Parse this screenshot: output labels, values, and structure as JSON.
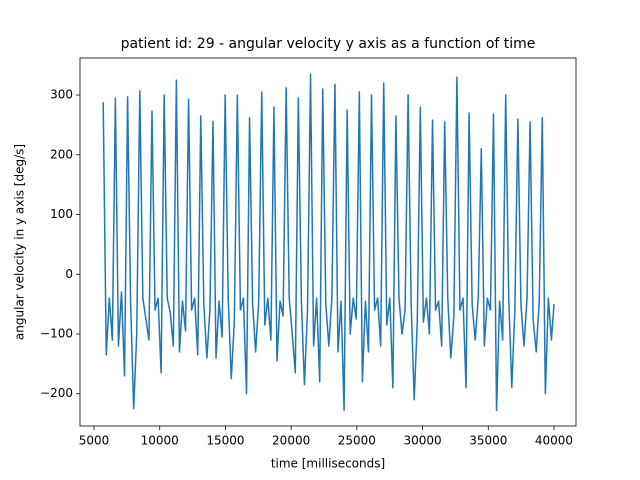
{
  "chart_data": {
    "type": "line",
    "title": "patient id: 29 - angular velocity y axis as a function of time",
    "xlabel": "time [milliseconds]",
    "ylabel": "angular velocity in y axis [deg/s]",
    "color": "#1f77b4",
    "xlim": [
      3935,
      41674
    ],
    "ylim": [
      -254,
      362
    ],
    "xticks": [
      5000,
      10000,
      15000,
      20000,
      25000,
      30000,
      35000,
      40000
    ],
    "yticks": [
      {
        "value": -200,
        "label": "−200"
      },
      {
        "value": -100,
        "label": "−100"
      },
      0,
      100,
      200,
      300
    ],
    "x": [
      5700,
      5932,
      6164,
      6396,
      6628,
      6860,
      7092,
      7324,
      7556,
      7788,
      8020,
      8252,
      8484,
      8716,
      8948,
      9180,
      9412,
      9644,
      9876,
      10108,
      10340,
      10572,
      10804,
      11036,
      11268,
      11500,
      11732,
      11964,
      12196,
      12428,
      12660,
      12892,
      13124,
      13356,
      13588,
      13820,
      14052,
      14284,
      14516,
      14748,
      14980,
      15212,
      15444,
      15676,
      15908,
      16140,
      16372,
      16604,
      16836,
      17068,
      17300,
      17532,
      17764,
      17996,
      18228,
      18460,
      18692,
      18924,
      19156,
      19388,
      19620,
      19852,
      20084,
      20316,
      20548,
      20780,
      21012,
      21244,
      21476,
      21708,
      21940,
      22172,
      22404,
      22636,
      22868,
      23100,
      23332,
      23564,
      23796,
      24028,
      24260,
      24492,
      24724,
      24956,
      25188,
      25420,
      25652,
      25884,
      26116,
      26348,
      26580,
      26812,
      27044,
      27276,
      27508,
      27740,
      27972,
      28204,
      28436,
      28668,
      28900,
      29132,
      29364,
      29596,
      29828,
      30060,
      30292,
      30524,
      30756,
      30988,
      31220,
      31452,
      31684,
      31916,
      32148,
      32380,
      32612,
      32844,
      33076,
      33308,
      33540,
      33772,
      34004,
      34236,
      34468,
      34700,
      34932,
      35164,
      35396,
      35628,
      35860,
      36092,
      36324,
      36556,
      36788,
      37020,
      37252,
      37484,
      37716,
      37948,
      38180,
      38412,
      38644,
      38876,
      39108,
      39340,
      39572,
      39804,
      40000
    ],
    "values": [
      288,
      -135,
      -40,
      -110,
      295,
      -120,
      -30,
      -170,
      297,
      -50,
      -225,
      -100,
      307,
      -40,
      -75,
      -110,
      273,
      -60,
      -40,
      -165,
      300,
      -40,
      -65,
      -120,
      325,
      -130,
      -45,
      -95,
      293,
      -60,
      -40,
      -135,
      265,
      -50,
      -140,
      -60,
      256,
      -140,
      -45,
      -105,
      300,
      -40,
      -175,
      -80,
      300,
      -60,
      -40,
      -200,
      262,
      -50,
      -130,
      -45,
      305,
      -85,
      -40,
      -110,
      280,
      -145,
      -45,
      -70,
      312,
      -40,
      -100,
      -165,
      295,
      -45,
      -185,
      -60,
      335,
      -120,
      -40,
      -180,
      310,
      -50,
      -120,
      -40,
      318,
      -130,
      -45,
      -228,
      275,
      -100,
      -40,
      -75,
      305,
      -180,
      -45,
      -130,
      300,
      -60,
      -40,
      -120,
      320,
      -85,
      -40,
      -190,
      265,
      -40,
      -100,
      -60,
      300,
      -50,
      -210,
      -80,
      280,
      -80,
      -40,
      -100,
      258,
      -60,
      -45,
      -120,
      255,
      -40,
      -140,
      -70,
      330,
      -60,
      -40,
      -190,
      270,
      -50,
      -110,
      -40,
      210,
      -120,
      -40,
      -60,
      268,
      -228,
      -45,
      -110,
      300,
      -40,
      -190,
      -60,
      260,
      -50,
      -120,
      -40,
      255,
      -75,
      -130,
      -45,
      262,
      -200,
      -40,
      -110,
      -50
    ]
  }
}
